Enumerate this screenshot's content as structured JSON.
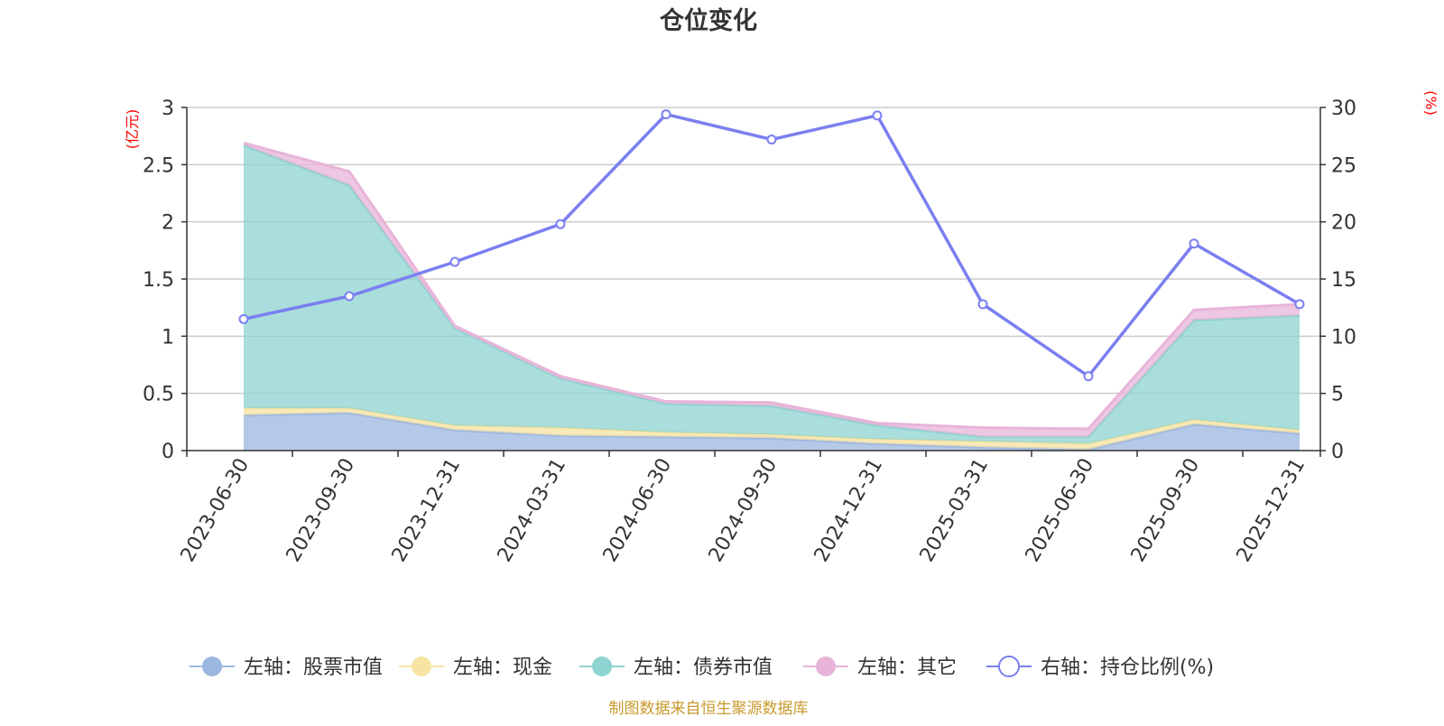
{
  "chart_data": {
    "type": "area",
    "title": "仓位变化",
    "left_axis_unit": "(亿元)",
    "right_axis_unit": "(%)",
    "categories": [
      "2023-06-30",
      "2023-09-30",
      "2023-12-31",
      "2024-03-31",
      "2024-06-30",
      "2024-09-30",
      "2024-12-31",
      "2025-03-31",
      "2025-06-30",
      "2025-09-30",
      "2025-12-31"
    ],
    "left_ylim": [
      0,
      3
    ],
    "left_yticks": [
      0,
      0.5,
      1,
      1.5,
      2,
      2.5,
      3
    ],
    "left_ytick_labels": [
      "0",
      "0.5",
      "1",
      "1.5",
      "2",
      "2.5",
      "3"
    ],
    "right_ylim": [
      0,
      30
    ],
    "right_yticks": [
      0,
      5,
      10,
      15,
      20,
      25,
      30
    ],
    "right_ytick_labels": [
      "0",
      "5",
      "10",
      "15",
      "20",
      "25",
      "30"
    ],
    "stacked_series": [
      {
        "name": "左轴：股票市值",
        "axis": "left",
        "color": "#9bb6e0",
        "values": [
          0.31,
          0.33,
          0.18,
          0.13,
          0.12,
          0.11,
          0.06,
          0.03,
          0.01,
          0.23,
          0.15
        ]
      },
      {
        "name": "左轴：现金",
        "axis": "left",
        "color": "#f7e3a3",
        "values": [
          0.06,
          0.04,
          0.04,
          0.07,
          0.04,
          0.03,
          0.04,
          0.05,
          0.05,
          0.04,
          0.03
        ]
      },
      {
        "name": "左轴：债券市值",
        "axis": "left",
        "color": "#8ed3d0",
        "values": [
          2.3,
          1.95,
          0.85,
          0.43,
          0.25,
          0.25,
          0.12,
          0.04,
          0.06,
          0.87,
          1.0
        ]
      },
      {
        "name": "左轴：其它",
        "axis": "left",
        "color": "#e8b4d9",
        "values": [
          0.02,
          0.12,
          0.02,
          0.02,
          0.02,
          0.03,
          0.02,
          0.08,
          0.07,
          0.09,
          0.1
        ]
      }
    ],
    "line_series": {
      "name": "右轴：持仓比例(%)",
      "axis": "right",
      "color": "#7b7ff0",
      "values": [
        11.5,
        13.5,
        16.5,
        19.8,
        29.4,
        27.2,
        29.3,
        12.8,
        6.5,
        18.1,
        12.8
      ]
    },
    "grid": true,
    "legend_position": "bottom-center"
  },
  "source_note": "制图数据来自恒生聚源数据库"
}
